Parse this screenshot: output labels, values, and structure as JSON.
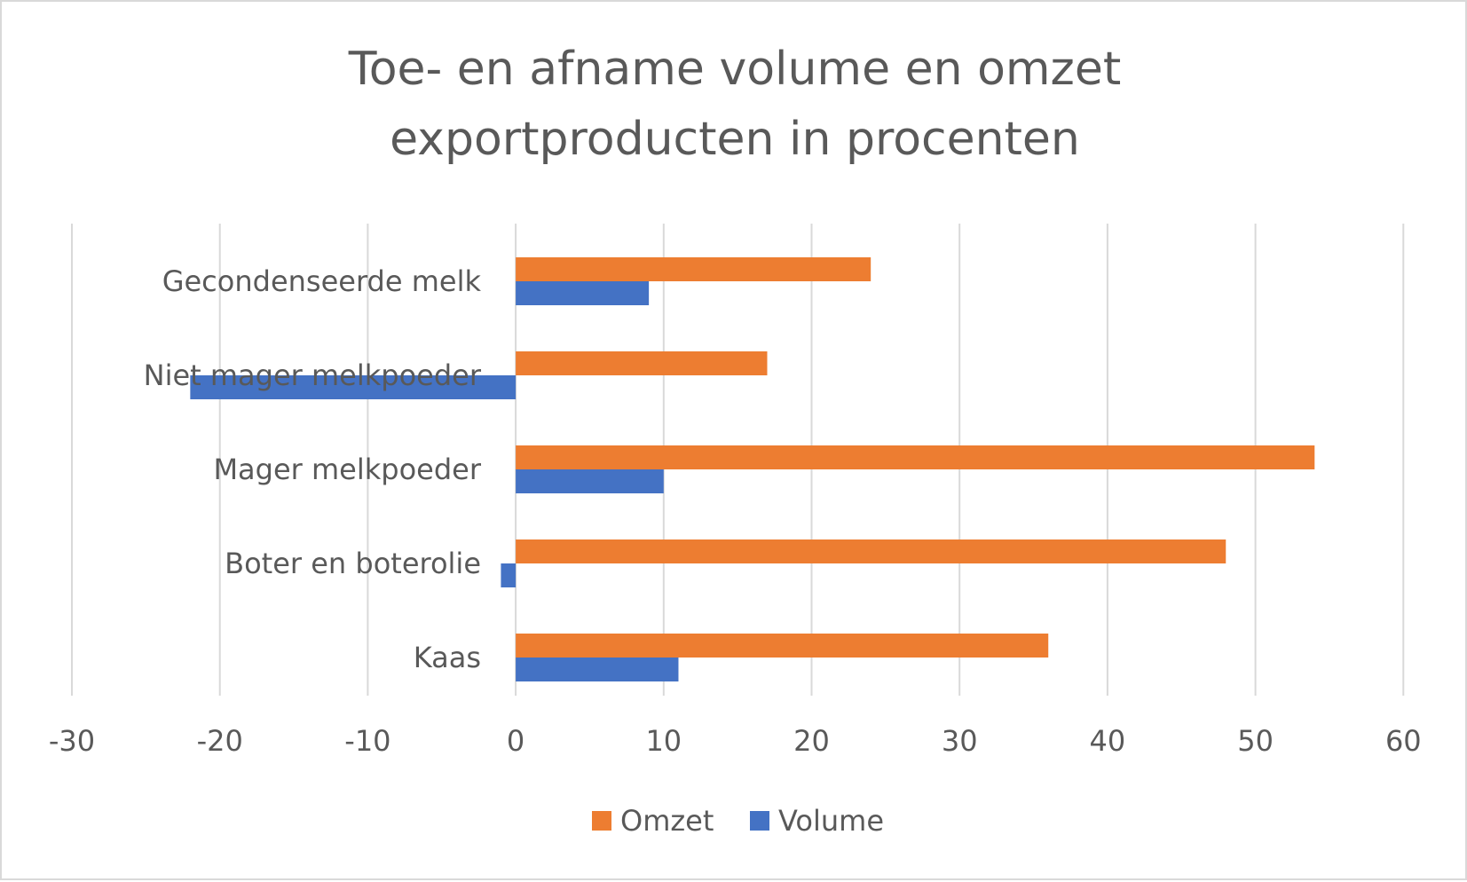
{
  "chart_data": {
    "type": "bar",
    "orientation": "horizontal",
    "title_lines": [
      "Toe- en afname volume en omzet",
      "exportproducten in procenten"
    ],
    "categories": [
      "Gecondenseerde melk",
      "Niet mager melkpoeder",
      "Mager melkpoeder",
      "Boter en boterolie",
      "Kaas"
    ],
    "series": [
      {
        "name": "Omzet",
        "color": "#ed7d31",
        "values": [
          24,
          17,
          54,
          48,
          36
        ]
      },
      {
        "name": "Volume",
        "color": "#4472c4",
        "values": [
          9,
          -22,
          10,
          -1,
          11
        ]
      }
    ],
    "xlim": [
      -30,
      60
    ],
    "xticks": [
      "-30",
      "-20",
      "-10",
      "0",
      "10",
      "20",
      "30",
      "40",
      "50",
      "60"
    ],
    "grid": true,
    "legend_position": "bottom"
  }
}
